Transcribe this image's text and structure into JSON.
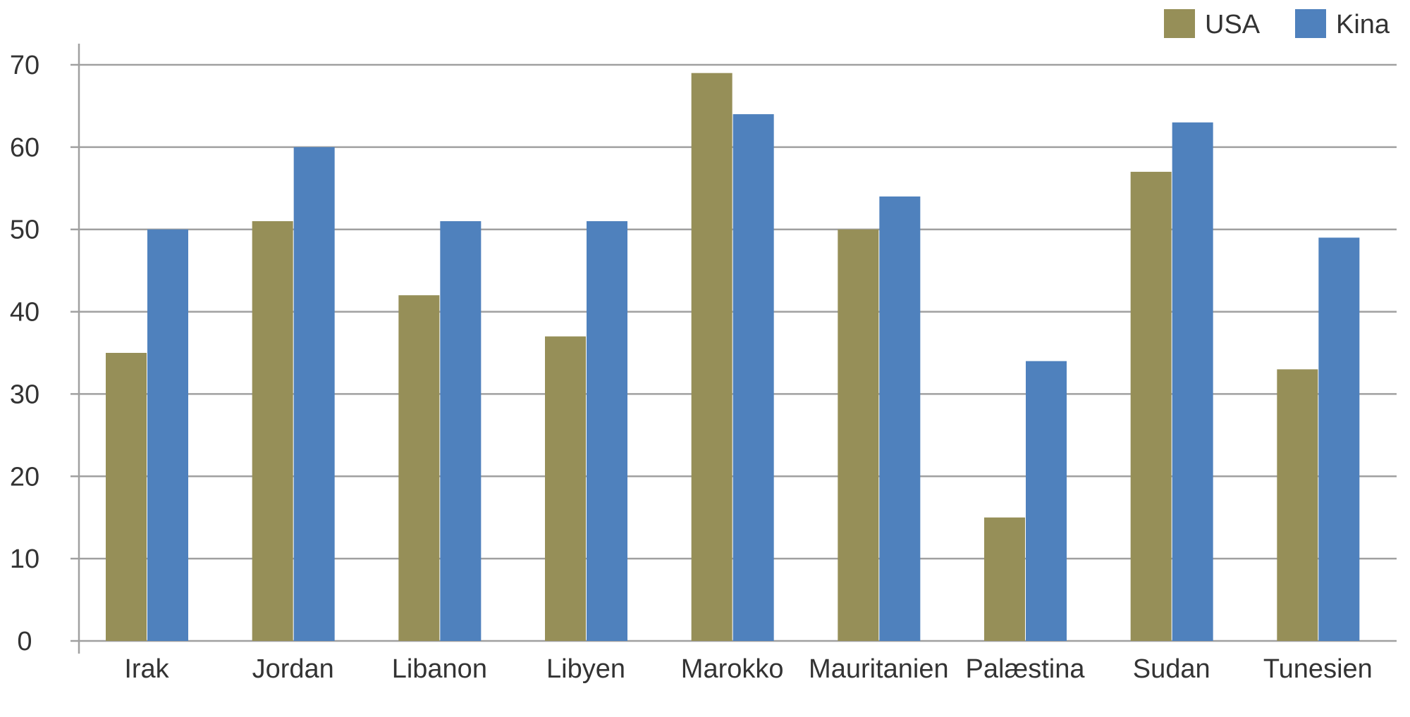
{
  "chart_data": {
    "type": "bar",
    "categories": [
      "Irak",
      "Jordan",
      "Libanon",
      "Libyen",
      "Marokko",
      "Mauritanien",
      "Palæstina",
      "Sudan",
      "Tunesien"
    ],
    "series": [
      {
        "name": "USA",
        "color": "#968f58",
        "values": [
          35,
          51,
          42,
          37,
          69,
          50,
          15,
          57,
          33
        ]
      },
      {
        "name": "Kina",
        "color": "#4f81bd",
        "values": [
          50,
          60,
          51,
          51,
          64,
          54,
          34,
          63,
          49
        ]
      }
    ],
    "ylim": [
      0,
      70
    ],
    "yticks": [
      0,
      10,
      20,
      30,
      40,
      50,
      60,
      70
    ],
    "grid": true,
    "legend": "top-right",
    "title": "",
    "xlabel": "",
    "ylabel": ""
  }
}
